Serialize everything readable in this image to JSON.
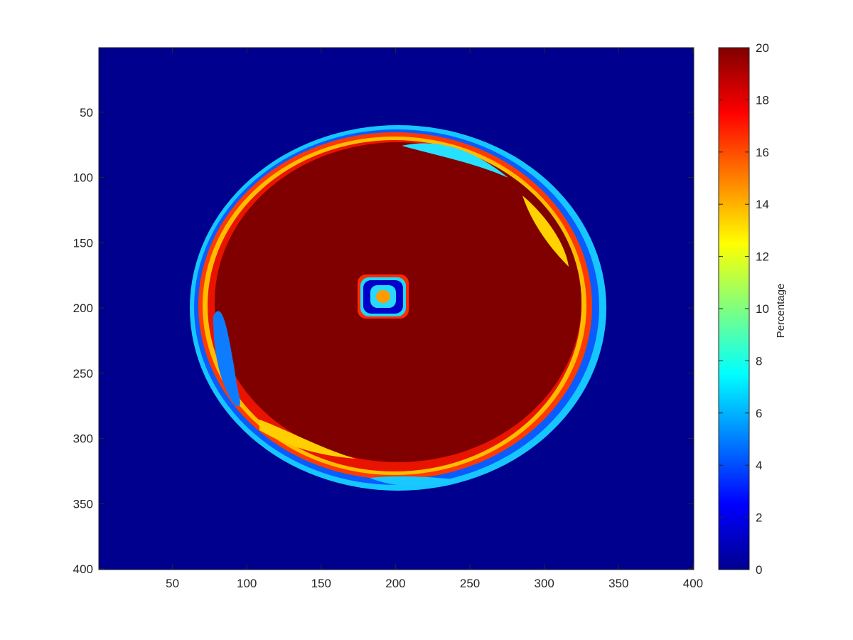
{
  "chart_data": {
    "type": "heatmap",
    "title": "",
    "xlabel": "",
    "ylabel": "",
    "colormap": "jet",
    "xlim": [
      0.5,
      400.5
    ],
    "ylim": [
      0.5,
      400.5
    ],
    "y_reversed": true,
    "x_ticks": [
      {
        "value": 50,
        "label": "50"
      },
      {
        "value": 100,
        "label": "100"
      },
      {
        "value": 150,
        "label": "150"
      },
      {
        "value": 200,
        "label": "200"
      },
      {
        "value": 250,
        "label": "250"
      },
      {
        "value": 300,
        "label": "300"
      },
      {
        "value": 350,
        "label": "350"
      },
      {
        "value": 400,
        "label": "400"
      }
    ],
    "y_ticks": [
      {
        "value": 50,
        "label": "50"
      },
      {
        "value": 100,
        "label": "100"
      },
      {
        "value": 150,
        "label": "150"
      },
      {
        "value": 200,
        "label": "200"
      },
      {
        "value": 250,
        "label": "250"
      },
      {
        "value": 300,
        "label": "300"
      },
      {
        "value": 350,
        "label": "350"
      },
      {
        "value": 400,
        "label": "400"
      }
    ],
    "colorbar": {
      "label": "Percentage",
      "clim": [
        0,
        20
      ],
      "ticks": [
        {
          "value": 0,
          "label": "0"
        },
        {
          "value": 2,
          "label": "2"
        },
        {
          "value": 4,
          "label": "4"
        },
        {
          "value": 6,
          "label": "6"
        },
        {
          "value": 8,
          "label": "8"
        },
        {
          "value": 10,
          "label": "10"
        },
        {
          "value": 12,
          "label": "12"
        },
        {
          "value": 14,
          "label": "14"
        },
        {
          "value": 16,
          "label": "16"
        },
        {
          "value": 18,
          "label": "18"
        },
        {
          "value": 20,
          "label": "20"
        }
      ]
    },
    "regions": {
      "background_value": 0,
      "disk": {
        "center": [
          200,
          200
        ],
        "radius": 140,
        "value": 20
      },
      "outer_rim": {
        "x_range": [
          60,
          342
        ],
        "y_range": [
          60,
          342
        ],
        "description_value_range": [
          0,
          20
        ]
      },
      "center_spot": {
        "center": [
          191,
          190
        ],
        "half_width": 13,
        "value_center": 16,
        "value_ring": 0
      }
    }
  }
}
